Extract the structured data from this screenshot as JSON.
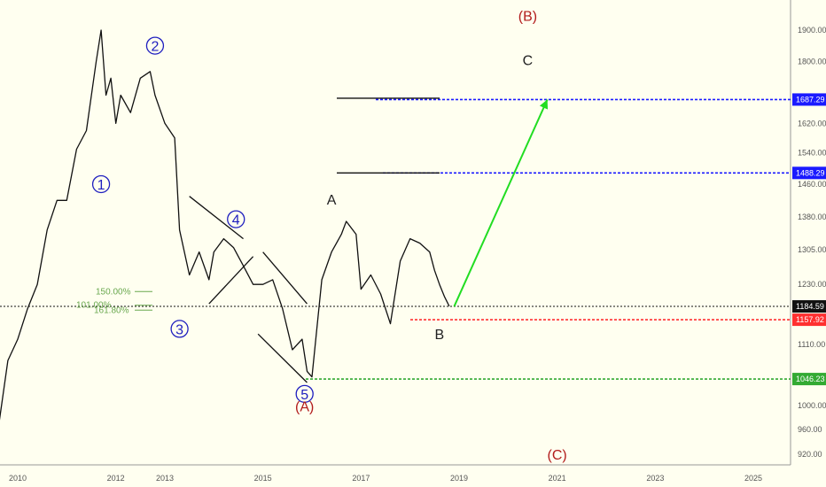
{
  "chart_data": {
    "type": "line",
    "x_axis": {
      "tick_labels": [
        "2010",
        "2012",
        "2013",
        "2015",
        "2017",
        "2019",
        "2021",
        "2023",
        "2025"
      ],
      "tick_values": [
        2010.0,
        2012.0,
        2013.0,
        2015.0,
        2017.0,
        2019.0,
        2021.0,
        2023.0,
        2025.0
      ]
    },
    "y_axis": {
      "tick_labels": [
        "1900.00",
        "1800.00",
        "1687.29",
        "1620.00",
        "1540.00",
        "1488.29",
        "1460.00",
        "1380.00",
        "1305.00",
        "1230.00",
        "1184.59",
        "1157.92",
        "1110.00",
        "1046.23",
        "1000.00",
        "960.00",
        "920.00"
      ],
      "tick_values": [
        1900,
        1800,
        1687.29,
        1620,
        1540,
        1488.29,
        1460,
        1380,
        1305,
        1230,
        1184.59,
        1157.92,
        1110,
        1046.23,
        1000,
        960,
        920
      ],
      "log_scale": true,
      "range": [
        900,
        1980
      ]
    },
    "series": [
      {
        "x": [
          2009.6,
          2009.8,
          2010.0,
          2010.2,
          2010.4,
          2010.6,
          2010.8,
          2011.0,
          2011.2,
          2011.4,
          2011.6,
          2011.7,
          2011.8,
          2011.9,
          2012.0,
          2012.1,
          2012.3,
          2012.5,
          2012.7,
          2012.8,
          2013.0,
          2013.2,
          2013.3,
          2013.5,
          2013.7,
          2013.9,
          2014.0,
          2014.2,
          2014.4,
          2014.6,
          2014.8,
          2015.0,
          2015.2,
          2015.4,
          2015.6,
          2015.8,
          2015.9,
          2016.0,
          2016.2,
          2016.4,
          2016.6,
          2016.7,
          2016.9,
          2017.0,
          2017.2,
          2017.4,
          2017.6,
          2017.8,
          2018.0,
          2018.2,
          2018.4,
          2018.5,
          2018.6,
          2018.7,
          2018.8
        ],
        "values": [
          960,
          1080,
          1120,
          1180,
          1230,
          1350,
          1420,
          1420,
          1550,
          1600,
          1800,
          1900,
          1700,
          1750,
          1620,
          1700,
          1650,
          1750,
          1770,
          1700,
          1620,
          1580,
          1350,
          1250,
          1300,
          1240,
          1300,
          1330,
          1310,
          1270,
          1230,
          1230,
          1240,
          1180,
          1100,
          1120,
          1060,
          1050,
          1240,
          1300,
          1340,
          1370,
          1340,
          1220,
          1250,
          1210,
          1150,
          1280,
          1330,
          1320,
          1300,
          1260,
          1230,
          1205,
          1185
        ]
      }
    ],
    "wave_labels": {
      "circled": [
        "1",
        "2",
        "3",
        "4",
        "5"
      ],
      "A": "A",
      "A_paren": "(A)",
      "B": "B",
      "B_paren": "(B)",
      "C": "C",
      "C_paren": "(C)"
    },
    "fib_labels": [
      "150.00%",
      "101.00%",
      "161.80%"
    ],
    "levels": [
      {
        "value": 1687.29,
        "label": "1687.29",
        "color": "#1a1aff"
      },
      {
        "value": 1488.29,
        "label": "1488.29",
        "color": "#1a1aff"
      },
      {
        "value": 1184.59,
        "label": "1184.59",
        "color": "#111111"
      },
      {
        "value": 1157.92,
        "label": "1157.92",
        "color": "#ff3030"
      },
      {
        "value": 1046.23,
        "label": "1046.23",
        "color": "#33aa33"
      }
    ],
    "colors": {
      "background": "#fffff0",
      "price": "#111111",
      "wave_circle": "#1f1fbf",
      "wave_red": "#b21c1c",
      "fib": "#6aa84f",
      "projection": "#22dd22"
    },
    "grid": false
  }
}
